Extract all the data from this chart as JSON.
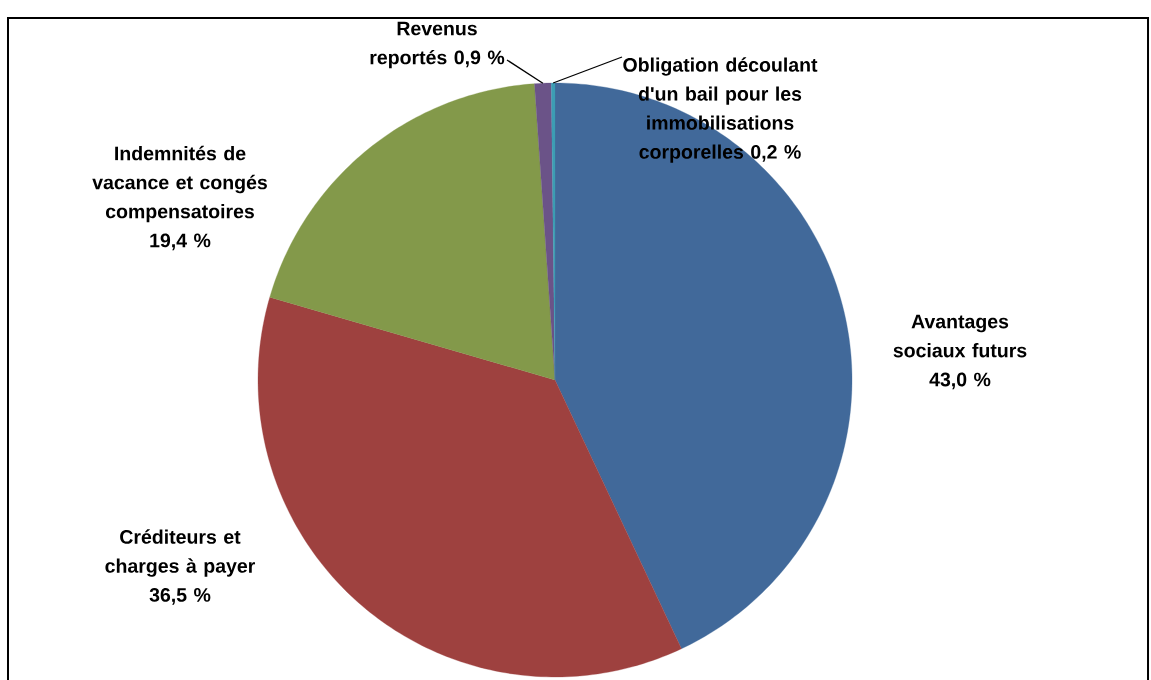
{
  "chart_data": {
    "type": "pie",
    "categories": [
      "Avantages sociaux futurs",
      "Créditeurs et charges à payer",
      "Indemnités de vacance et congés compensatoires",
      "Revenus reportés",
      "Obligation découlant d'un bail pour les immobilisations corporelles"
    ],
    "values": [
      43.0,
      36.5,
      19.4,
      0.9,
      0.2
    ],
    "value_labels": [
      "43,0 %",
      "36,5 %",
      "19,4 %",
      "0,9 %",
      "0,2 %"
    ],
    "colors": [
      "#41699a",
      "#9e413f",
      "#83994a",
      "#6b5388",
      "#3c9db4"
    ]
  }
}
